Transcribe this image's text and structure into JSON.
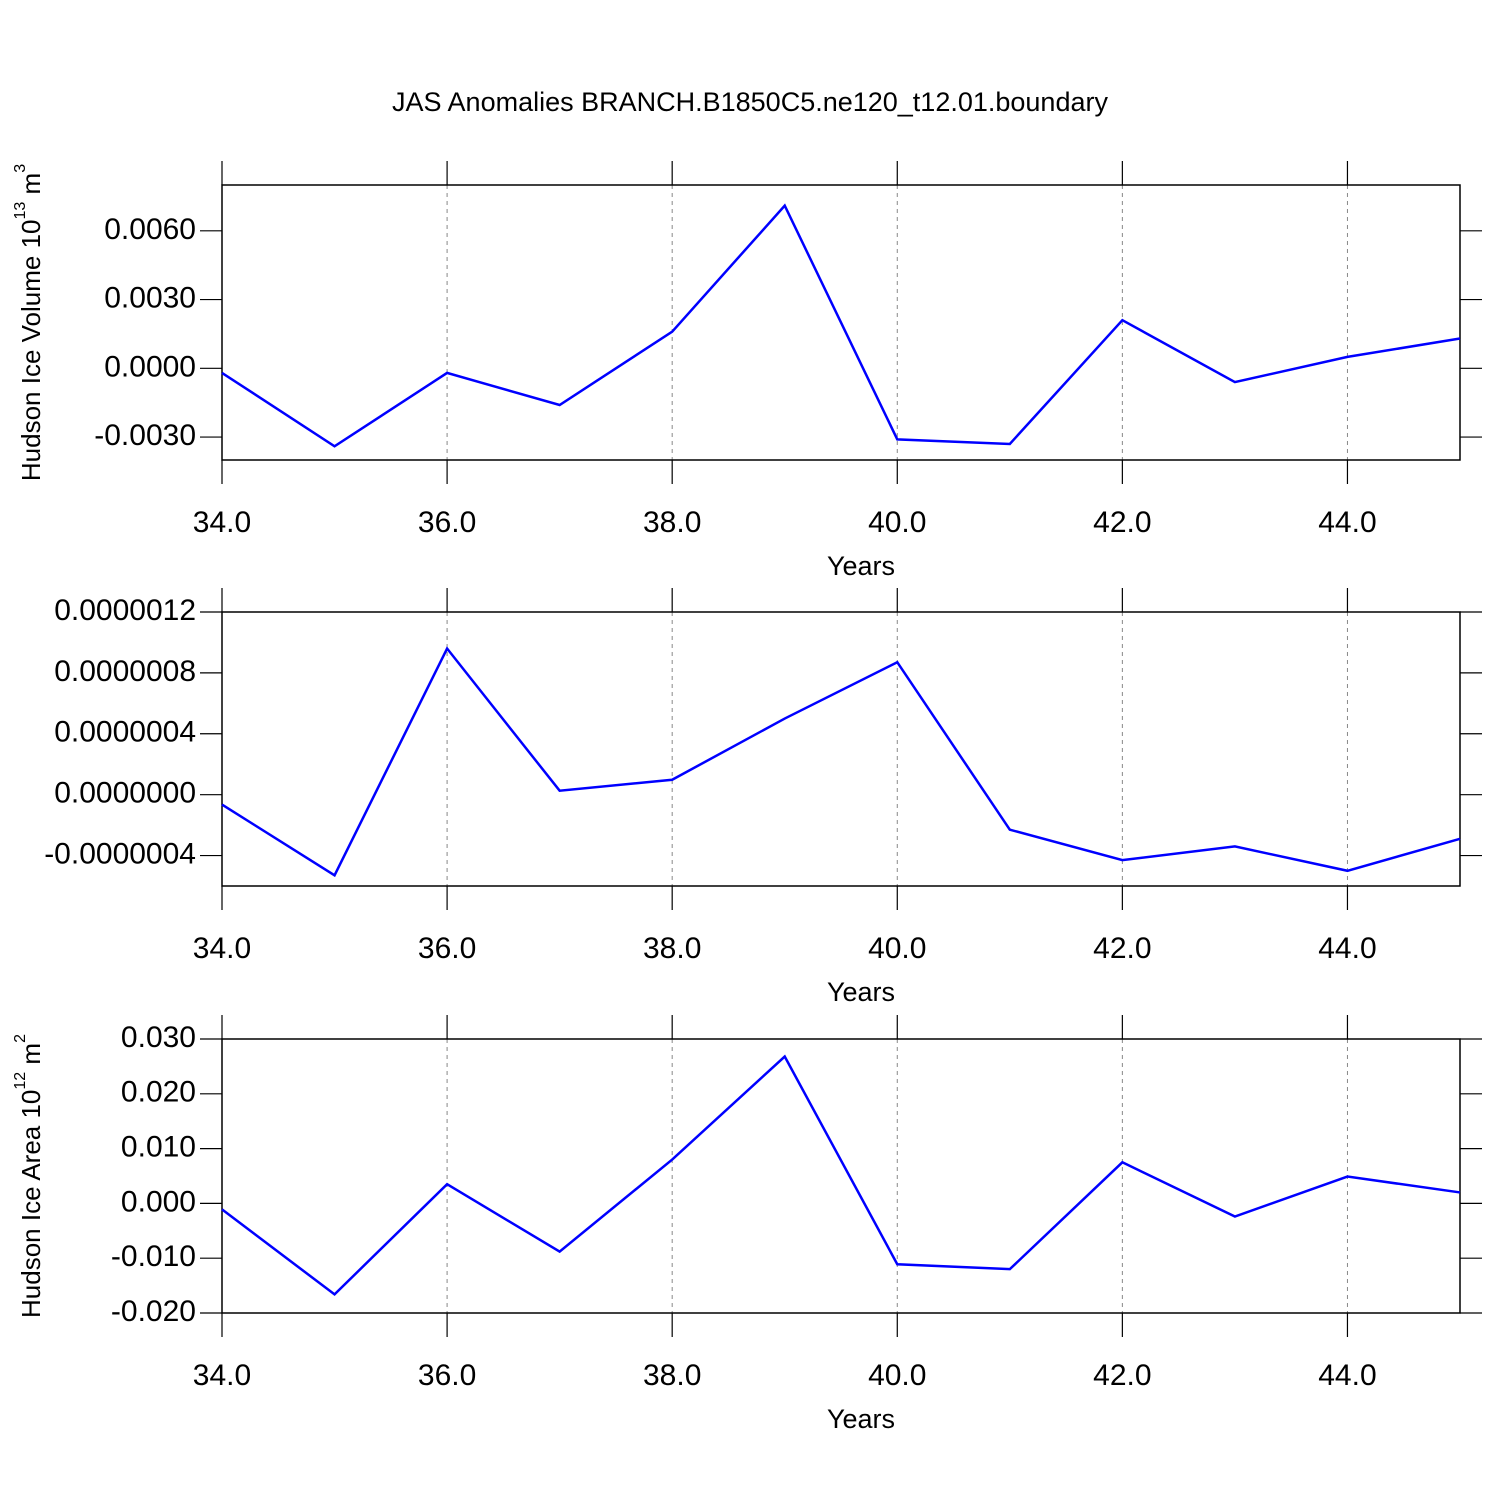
{
  "chart_data": [
    {
      "type": "line",
      "title": "JAS Anomalies BRANCH.B1850C5.ne120_t12.01.boundary",
      "ylabel_parts": [
        {
          "text": "Hudson Ice Volume 10",
          "sup": false
        },
        {
          "text": "13",
          "sup": true
        },
        {
          "text": " m",
          "sup": false
        },
        {
          "text": "3",
          "sup": true
        }
      ],
      "xlabel": "Years",
      "x": [
        34,
        35,
        36,
        37,
        38,
        39,
        40,
        41,
        42,
        43,
        44,
        45
      ],
      "series": [
        {
          "color": "#0000ff",
          "values": [
            -0.0002,
            -0.0034,
            -0.0002,
            -0.0016,
            0.0016,
            0.0071,
            -0.0031,
            -0.0033,
            0.0021,
            -0.0006,
            0.0005,
            0.0013
          ]
        }
      ],
      "xlim": [
        34,
        45
      ],
      "xticks": [
        {
          "value": 34,
          "label": "34.0"
        },
        {
          "value": 36,
          "label": "36.0"
        },
        {
          "value": 38,
          "label": "38.0"
        },
        {
          "value": 40,
          "label": "40.0"
        },
        {
          "value": 42,
          "label": "42.0"
        },
        {
          "value": 44,
          "label": "44.0"
        }
      ],
      "ylim": [
        -0.004,
        0.008
      ],
      "yticks": [
        {
          "value": 0.006,
          "label": "0.0060"
        },
        {
          "value": 0.003,
          "label": "0.0030"
        },
        {
          "value": 0,
          "label": "0.0000"
        },
        {
          "value": -0.003,
          "label": "-0.0030"
        }
      ],
      "xgrid": true
    },
    {
      "type": "line",
      "xlabel": "Years",
      "x": [
        34,
        35,
        36,
        37,
        38,
        39,
        40,
        41,
        42,
        43,
        44,
        45
      ],
      "series": [
        {
          "color": "#0000ff",
          "values": [
            -6.5e-08,
            -5.3e-07,
            9.6e-07,
            2.6e-08,
            9.8e-08,
            5e-07,
            8.7e-07,
            -2.3e-07,
            -4.3e-07,
            -3.4e-07,
            -5e-07,
            -2.9e-07
          ]
        }
      ],
      "xlim": [
        34,
        45
      ],
      "xticks": [
        {
          "value": 34,
          "label": "34.0"
        },
        {
          "value": 36,
          "label": "36.0"
        },
        {
          "value": 38,
          "label": "38.0"
        },
        {
          "value": 40,
          "label": "40.0"
        },
        {
          "value": 42,
          "label": "42.0"
        },
        {
          "value": 44,
          "label": "44.0"
        }
      ],
      "ylim": [
        -6e-07,
        1.2e-06
      ],
      "yticks": [
        {
          "value": 1.2e-06,
          "label": "0.0000012"
        },
        {
          "value": 8e-07,
          "label": "0.0000008"
        },
        {
          "value": 4e-07,
          "label": "0.0000004"
        },
        {
          "value": 0,
          "label": "0.0000000"
        },
        {
          "value": -4e-07,
          "label": "-0.0000004"
        }
      ],
      "xgrid": true
    },
    {
      "type": "line",
      "ylabel_parts": [
        {
          "text": "Hudson Ice Area 10",
          "sup": false
        },
        {
          "text": "12",
          "sup": true
        },
        {
          "text": " m",
          "sup": false
        },
        {
          "text": "2",
          "sup": true
        }
      ],
      "xlabel": "Years",
      "x": [
        34,
        35,
        36,
        37,
        38,
        39,
        40,
        41,
        42,
        43,
        44,
        45
      ],
      "series": [
        {
          "color": "#0000ff",
          "values": [
            -0.0011,
            -0.0166,
            0.0035,
            -0.0088,
            0.008,
            0.0268,
            -0.0111,
            -0.012,
            0.0075,
            -0.0024,
            0.0049,
            0.002
          ]
        }
      ],
      "xlim": [
        34,
        45
      ],
      "xticks": [
        {
          "value": 34,
          "label": "34.0"
        },
        {
          "value": 36,
          "label": "36.0"
        },
        {
          "value": 38,
          "label": "38.0"
        },
        {
          "value": 40,
          "label": "40.0"
        },
        {
          "value": 42,
          "label": "42.0"
        },
        {
          "value": 44,
          "label": "44.0"
        }
      ],
      "ylim": [
        -0.02,
        0.03
      ],
      "yticks": [
        {
          "value": 0.03,
          "label": "0.030"
        },
        {
          "value": 0.02,
          "label": "0.020"
        },
        {
          "value": 0.01,
          "label": "0.010"
        },
        {
          "value": 0,
          "label": "0.000"
        },
        {
          "value": -0.01,
          "label": "-0.010"
        },
        {
          "value": -0.02,
          "label": "-0.020"
        }
      ],
      "xgrid": true
    }
  ]
}
